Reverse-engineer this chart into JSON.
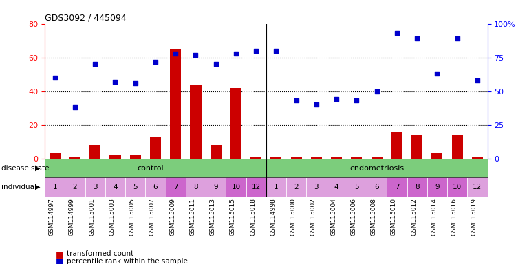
{
  "title": "GDS3092 / 445094",
  "samples": [
    "GSM114997",
    "GSM114999",
    "GSM115001",
    "GSM115003",
    "GSM115005",
    "GSM115007",
    "GSM115009",
    "GSM115011",
    "GSM115013",
    "GSM115015",
    "GSM115018",
    "GSM114998",
    "GSM115000",
    "GSM115002",
    "GSM115004",
    "GSM115006",
    "GSM115008",
    "GSM115010",
    "GSM115012",
    "GSM115014",
    "GSM115016",
    "GSM115019"
  ],
  "transformed_count": [
    3,
    1,
    8,
    2,
    2,
    13,
    65,
    44,
    8,
    42,
    1,
    1,
    1,
    1,
    1,
    1,
    1,
    16,
    14,
    3,
    14,
    1
  ],
  "percentile_rank": [
    60,
    38,
    70,
    57,
    56,
    72,
    78,
    77,
    70,
    78,
    80,
    80,
    43,
    40,
    44,
    43,
    50,
    93,
    89,
    63,
    89,
    58
  ],
  "individual": [
    "1",
    "2",
    "3",
    "4",
    "5",
    "6",
    "7",
    "8",
    "9",
    "10",
    "12",
    "1",
    "2",
    "3",
    "4",
    "5",
    "6",
    "7",
    "8",
    "9",
    "10",
    "12"
  ],
  "bar_color": "#CC0000",
  "dot_color": "#0000CC",
  "green_color": "#7CCD7C",
  "ylim_left": [
    0,
    80
  ],
  "ylim_right": [
    0,
    100
  ],
  "yticks_left": [
    0,
    20,
    40,
    60,
    80
  ],
  "yticks_right": [
    0,
    25,
    50,
    75,
    100
  ],
  "ytick_labels_right": [
    "0",
    "25",
    "50",
    "75",
    "100%"
  ],
  "hlines": [
    20,
    40,
    60
  ],
  "sep_idx": 10,
  "n_control": 11,
  "n_endo": 11,
  "individual_colors": [
    "#DDA0DD",
    "#DDA0DD",
    "#DDA0DD",
    "#DDA0DD",
    "#DDA0DD",
    "#DDA0DD",
    "#CC66CC",
    "#DDA0DD",
    "#DDA0DD",
    "#CC66CC",
    "#CC66CC",
    "#DDA0DD",
    "#DDA0DD",
    "#DDA0DD",
    "#DDA0DD",
    "#DDA0DD",
    "#DDA0DD",
    "#CC66CC",
    "#CC66CC",
    "#CC66CC",
    "#CC66CC",
    "#DDA0DD"
  ]
}
